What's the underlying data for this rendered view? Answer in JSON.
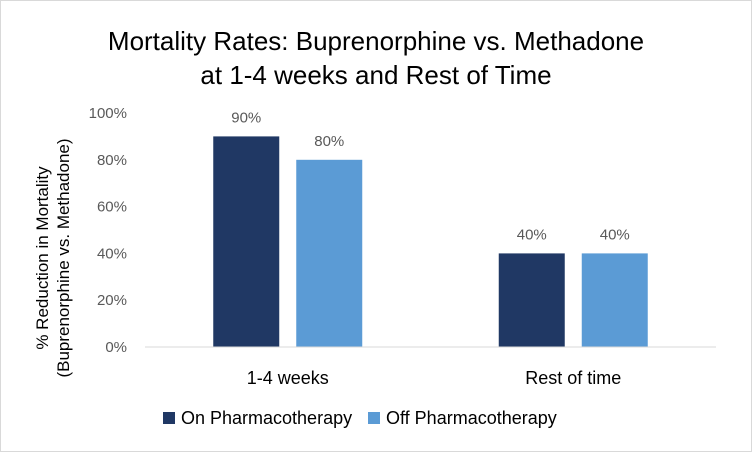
{
  "chart_data": {
    "type": "bar",
    "title_lines": [
      "Mortality Rates: Buprenorphine vs. Methadone",
      "at 1-4 weeks and Rest of Time"
    ],
    "ylabel_lines": [
      "% Reduction in Mortality",
      "(Buprenorphine vs. Methadone)"
    ],
    "xlabel": "",
    "categories": [
      "1-4 weeks",
      "Rest of time"
    ],
    "series": [
      {
        "name": "On Pharmacotherapy",
        "values": [
          90,
          40
        ],
        "color": "#203864"
      },
      {
        "name": "Off Pharmacotherapy",
        "values": [
          80,
          40
        ],
        "color": "#5b9bd5"
      }
    ],
    "ylim": [
      0,
      100
    ],
    "y_ticks": [
      0,
      20,
      40,
      60,
      80,
      100
    ],
    "y_tick_labels": [
      "0%",
      "20%",
      "40%",
      "60%",
      "80%",
      "100%"
    ],
    "data_labels": [
      [
        "90%",
        "40%"
      ],
      [
        "80%",
        "40%"
      ]
    ],
    "grid": false,
    "legend_position": "bottom"
  }
}
